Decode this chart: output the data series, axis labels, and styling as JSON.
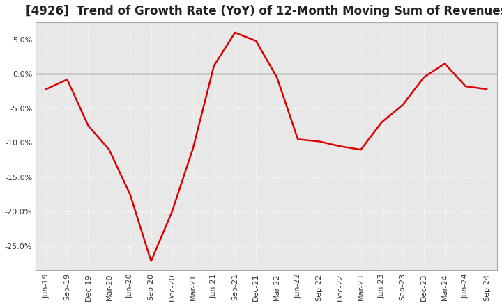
{
  "title": "[4926]  Trend of Growth Rate (YoY) of 12-Month Moving Sum of Revenues",
  "title_fontsize": 12,
  "background_color": "#ffffff",
  "plot_bg_color": "#e8e8e8",
  "grid_color": "#ffffff",
  "line_color": "#dd0000",
  "zero_line_color": "#555555",
  "ylim": [
    -0.285,
    0.075
  ],
  "yticks": [
    0.05,
    0.0,
    -0.05,
    -0.1,
    -0.15,
    -0.2,
    -0.25
  ],
  "dates": [
    "Jun-19",
    "Sep-19",
    "Dec-19",
    "Mar-20",
    "Jun-20",
    "Sep-20",
    "Dec-20",
    "Mar-21",
    "Jun-21",
    "Sep-21",
    "Dec-21",
    "Mar-22",
    "Jun-22",
    "Sep-22",
    "Dec-22",
    "Mar-23",
    "Jun-23",
    "Sep-23",
    "Dec-23",
    "Mar-24",
    "Jun-24",
    "Sep-24"
  ],
  "values": [
    -0.022,
    -0.008,
    -0.075,
    -0.11,
    -0.175,
    -0.272,
    -0.2,
    -0.108,
    0.012,
    0.06,
    0.048,
    -0.005,
    -0.095,
    -0.098,
    -0.105,
    -0.11,
    -0.07,
    -0.045,
    -0.005,
    0.015,
    -0.018,
    -0.022
  ]
}
